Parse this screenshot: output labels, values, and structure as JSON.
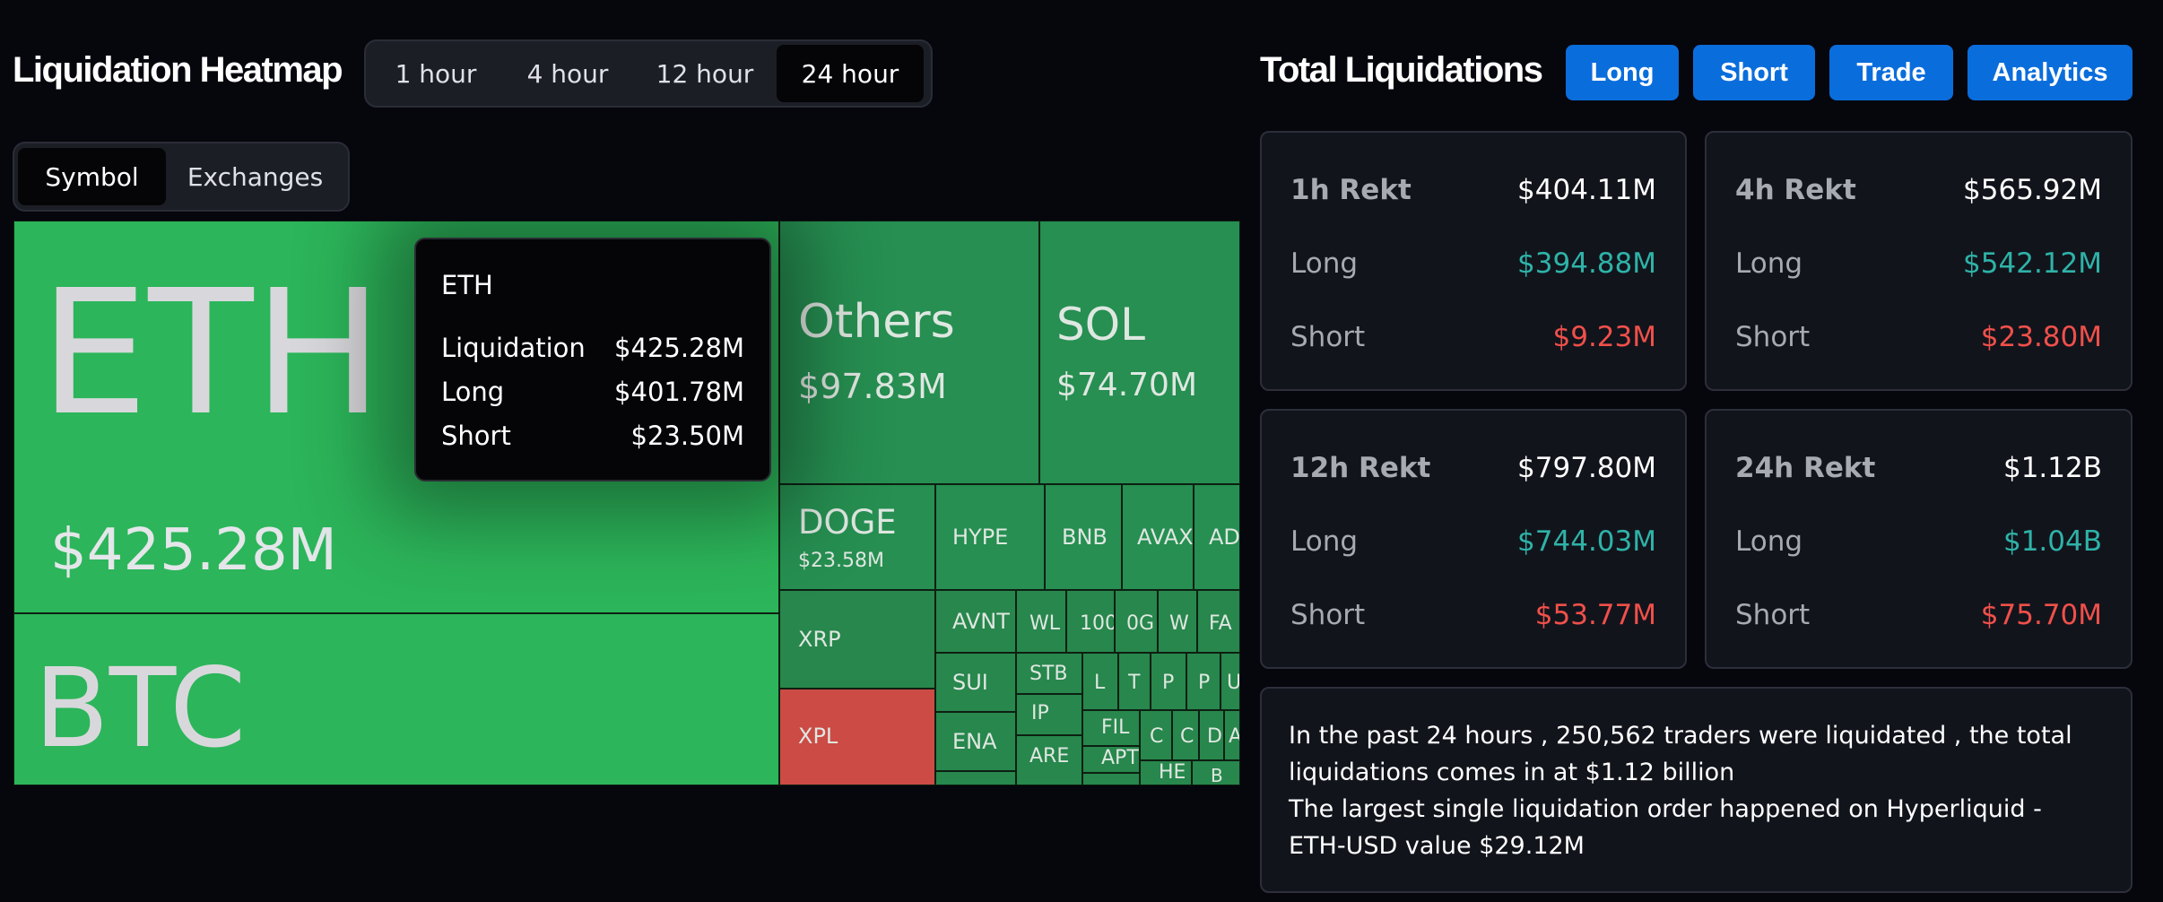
{
  "heatmap": {
    "title": "Liquidation Heatmap",
    "time_tabs": [
      {
        "label": "1 hour",
        "active": false
      },
      {
        "label": "4 hour",
        "active": false
      },
      {
        "label": "12 hour",
        "active": false
      },
      {
        "label": "24 hour",
        "active": true
      }
    ],
    "view_tabs": [
      {
        "label": "Symbol",
        "active": true
      },
      {
        "label": "Exchanges",
        "active": false
      }
    ],
    "tiles": {
      "eth": {
        "symbol": "ETH",
        "value": "$425.28M"
      },
      "btc": {
        "symbol": "BTC"
      },
      "others": {
        "symbol": "Others",
        "value": "$97.83M"
      },
      "sol": {
        "symbol": "SOL",
        "value": "$74.70M"
      },
      "doge": {
        "symbol": "DOGE",
        "value": "$23.58M"
      },
      "hype": "HYPE",
      "bnb": "BNB",
      "avax": "AVAX",
      "ad": "AD",
      "xrp": "XRP",
      "xpl": "XPL",
      "avnt": "AVNT",
      "wl": "WL",
      "t100": "100",
      "og": "0G",
      "w": "W",
      "fa": "FA",
      "sui": "SUI",
      "stb": "STB",
      "l": "L",
      "t": "T",
      "p1": "P",
      "p2": "P",
      "u": "U",
      "ena": "ENA",
      "ip": "IP",
      "fil": "FIL",
      "c1": "C",
      "c2": "C",
      "d": "D",
      "a": "A",
      "are": "ARE",
      "apt": "APT",
      "he": "HE",
      "b": "B"
    },
    "tooltip": {
      "symbol": "ETH",
      "rows": [
        {
          "label": "Liquidation",
          "value": "$425.28M"
        },
        {
          "label": "Long",
          "value": "$401.78M"
        },
        {
          "label": "Short",
          "value": "$23.50M"
        }
      ]
    }
  },
  "totals": {
    "title": "Total Liquidations",
    "buttons": [
      "Long",
      "Short",
      "Trade",
      "Analytics"
    ],
    "cards": [
      {
        "label": "1h Rekt",
        "total": "$404.11M",
        "long_label": "Long",
        "long": "$394.88M",
        "short_label": "Short",
        "short": "$9.23M"
      },
      {
        "label": "4h Rekt",
        "total": "$565.92M",
        "long_label": "Long",
        "long": "$542.12M",
        "short_label": "Short",
        "short": "$23.80M"
      },
      {
        "label": "12h Rekt",
        "total": "$797.80M",
        "long_label": "Long",
        "long": "$744.03M",
        "short_label": "Short",
        "short": "$53.77M"
      },
      {
        "label": "24h Rekt",
        "total": "$1.12B",
        "long_label": "Long",
        "long": "$1.04B",
        "short_label": "Short",
        "short": "$75.70M"
      }
    ],
    "summary_line1": "In the past 24 hours , 250,562 traders were liquidated , the total liquidations comes in at $1.12 billion",
    "summary_line2": "The largest single liquidation order happened on Hyperliquid - ETH-USD value $29.12M"
  },
  "colors": {
    "accent": "#0a6ddc",
    "long": "#2eb3a8",
    "short": "#f0504a",
    "tile_green": "#2cb55a",
    "tile_red": "#cc4b45"
  }
}
